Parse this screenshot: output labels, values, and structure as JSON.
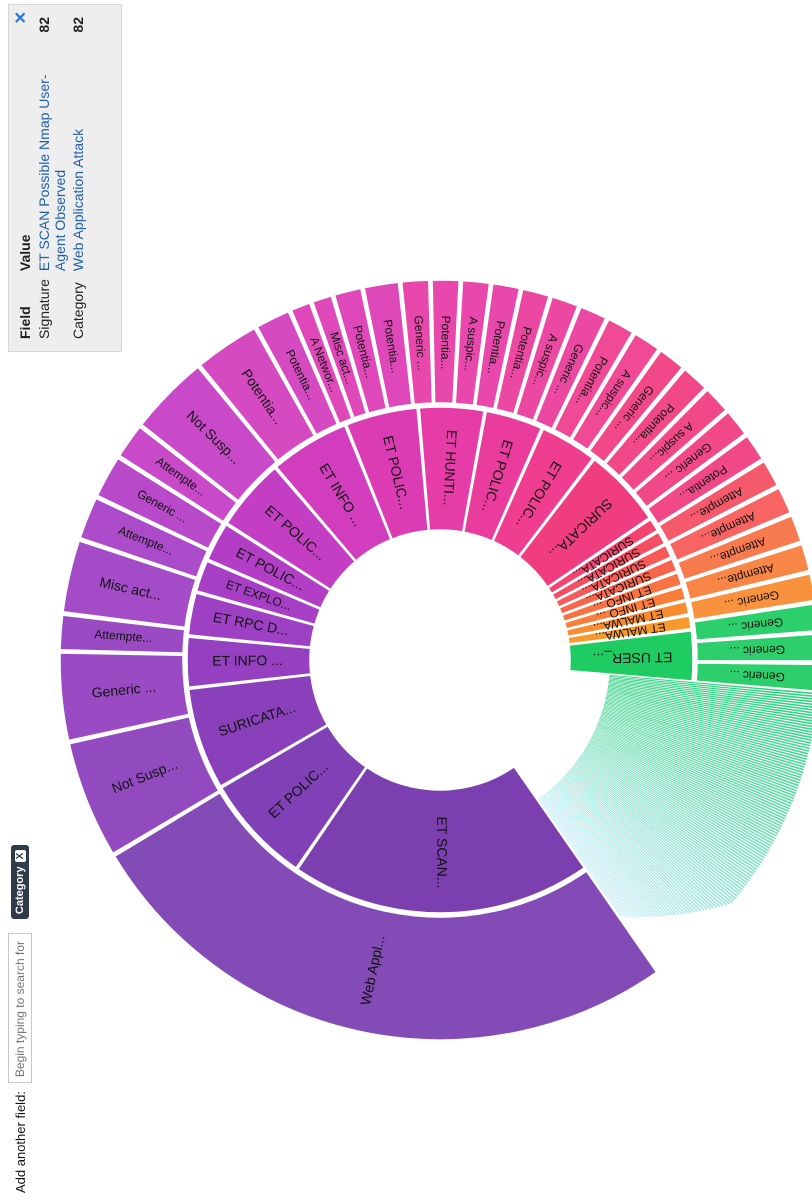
{
  "tooltip": {
    "close_icon": "✕",
    "header_field": "Field",
    "header_value": "Value",
    "rows": [
      {
        "field": "Signature",
        "value": "ET SCAN Possible Nmap User-Agent Observed",
        "count": "82"
      },
      {
        "field": "Category",
        "value": "Web Application Attack",
        "count": "82"
      }
    ]
  },
  "fieldbar": {
    "label": "Add another field:",
    "placeholder": "Begin typing to search for fi",
    "chip_label": "Category",
    "chip_remove": "X"
  },
  "chart_data": {
    "type": "sunburst",
    "inner_ring": [
      {
        "label": "ET SCAN...",
        "value": 82,
        "color": "#7b3fb0"
      },
      {
        "label": "ET POLIC...",
        "value": 30,
        "color": "#8040b6"
      },
      {
        "label": "SURICATA...",
        "value": 28,
        "color": "#8b40bb"
      },
      {
        "label": "ET INFO ...",
        "value": 14,
        "color": "#9440c0"
      },
      {
        "label": "ET RPC D...",
        "value": 12,
        "color": "#9e40c4"
      },
      {
        "label": "ET EXPLO...",
        "value": 9,
        "color": "#a73fc6"
      },
      {
        "label": "ET POLIC...",
        "value": 11,
        "color": "#b33ec6"
      },
      {
        "label": "ET POLIC...",
        "value": 20,
        "color": "#c43ec4"
      },
      {
        "label": "ET INFO ...",
        "value": 22,
        "color": "#d23dbd"
      },
      {
        "label": "ET POLIC...",
        "value": 20,
        "color": "#dc3cb3"
      },
      {
        "label": "ET HUNTI...",
        "value": 18,
        "color": "#e63ca7"
      },
      {
        "label": "ET POLIC...",
        "value": 16,
        "color": "#ea3c9c"
      },
      {
        "label": "ET POLIC...",
        "value": 16,
        "color": "#ef3d8f"
      },
      {
        "label": "SURICATA...",
        "value": 22,
        "color": "#f03d7f"
      },
      {
        "label": "SURICATA...",
        "value": 4,
        "color": "#f3436e"
      },
      {
        "label": "SURICATA...",
        "value": 4,
        "color": "#f44e63"
      },
      {
        "label": "SURICATA...",
        "value": 4,
        "color": "#f65a58"
      },
      {
        "label": "SURICATA...",
        "value": 4,
        "color": "#f7654d"
      },
      {
        "label": "ET INFO ...",
        "value": 4,
        "color": "#f87244"
      },
      {
        "label": "ET INFO ...",
        "value": 4,
        "color": "#f97e3a"
      },
      {
        "label": "ET MALWA...",
        "value": 4,
        "color": "#f98b31"
      },
      {
        "label": "ET MALWA...",
        "value": 4,
        "color": "#f89a2b"
      },
      {
        "label": "ET USER_...",
        "value": 14,
        "color": "#1fcc62"
      }
    ],
    "outer_ring": [
      {
        "label": "Web Appl...",
        "value": 82
      },
      {
        "label": "Not Susp...",
        "value": 16
      },
      {
        "label": "Generic ...",
        "value": 12
      },
      {
        "label": "Attempte...",
        "value": 5
      },
      {
        "label": "Misc act...",
        "value": 10
      },
      {
        "label": "Attempte...",
        "value": 6
      },
      {
        "label": "Generic ...",
        "value": 6
      },
      {
        "label": "Attempte...",
        "value": 5
      },
      {
        "label": "Not Susp...",
        "value": 11
      },
      {
        "label": "Potentia...",
        "value": 9
      },
      {
        "label": "Potentia...",
        "value": 5
      },
      {
        "label": "A Networ...",
        "value": 3
      },
      {
        "label": "Misc act...",
        "value": 3
      },
      {
        "label": "Potentia...",
        "value": 4
      },
      {
        "label": "Potentia...",
        "value": 5
      },
      {
        "label": "Generic ...",
        "value": 4
      },
      {
        "label": "Potentia...",
        "value": 4
      },
      {
        "label": "A suspic...",
        "value": 4
      },
      {
        "label": "Potentia...",
        "value": 4
      },
      {
        "label": "Potentia...",
        "value": 4
      },
      {
        "label": "A suspic...",
        "value": 4
      },
      {
        "label": "Generic ...",
        "value": 4
      },
      {
        "label": "Potentia...",
        "value": 4
      },
      {
        "label": "A suspic...",
        "value": 4
      },
      {
        "label": "Generic ...",
        "value": 4
      },
      {
        "label": "Potentia...",
        "value": 4
      },
      {
        "label": "A suspic...",
        "value": 4
      },
      {
        "label": "Generic ...",
        "value": 4
      },
      {
        "label": "Potentia...",
        "value": 4
      },
      {
        "label": "Attempte...",
        "value": 4
      },
      {
        "label": "Attempte...",
        "value": 4
      },
      {
        "label": "Attempte...",
        "value": 4
      },
      {
        "label": "Attempte...",
        "value": 4
      },
      {
        "label": "Generic ...",
        "value": 4
      },
      {
        "label": "Generic ...",
        "value": 4
      },
      {
        "label": "Generic ...",
        "value": 4
      },
      {
        "label": "Generic ...",
        "value": 4
      }
    ],
    "thin_slice_count": 120,
    "thin_color_start": "#30d080",
    "thin_color_end": "#c8eefc"
  }
}
